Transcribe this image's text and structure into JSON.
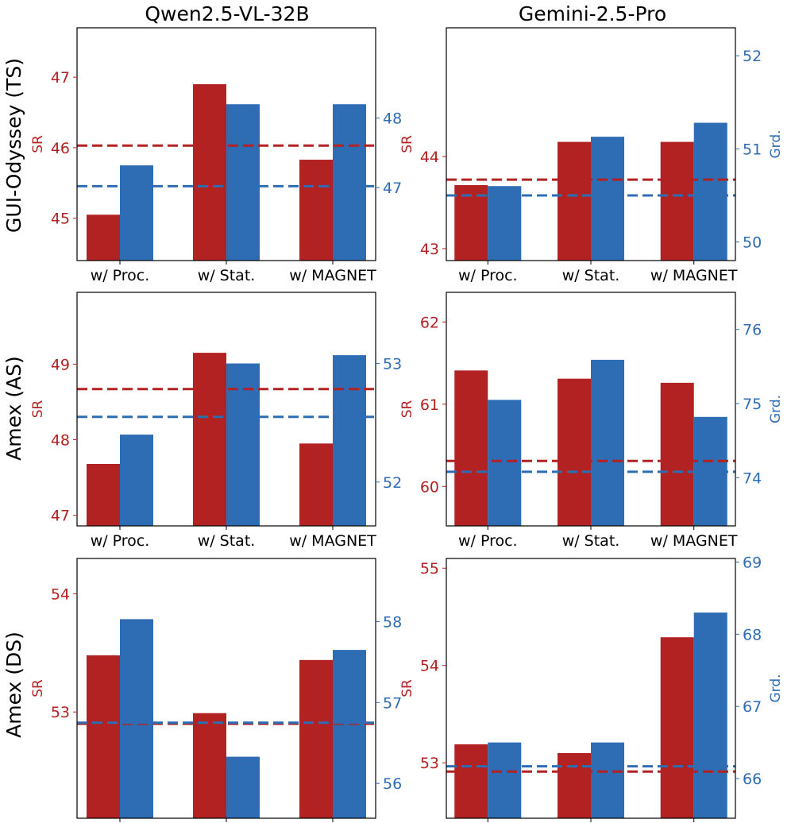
{
  "colors": {
    "sr": "#b22222",
    "grd": "#2e6db4"
  },
  "column_titles": [
    "Qwen2.5-VL-32B",
    "Gemini-2.5-Pro"
  ],
  "row_labels": [
    "GUI-Odyssey (TS)",
    "Amex (AS)",
    "Amex (DS)"
  ],
  "chart_data": [
    {
      "type": "bar",
      "model": "Qwen2.5-VL-32B",
      "dataset": "GUI-Odyssey (TS)",
      "categories": [
        "w/ Proc.",
        "w/ Stat.",
        "w/ MAGNET"
      ],
      "series": [
        {
          "name": "SR",
          "axis": "left",
          "values": [
            45.05,
            46.9,
            45.83
          ],
          "baseline": 46.03
        },
        {
          "name": "Grd.",
          "axis": "right",
          "values": [
            47.32,
            48.2,
            48.2
          ],
          "baseline": 47.02
        }
      ],
      "ylabel": "SR",
      "y2label": "",
      "ylim": [
        44.4,
        47.7
      ],
      "yticks": [
        45,
        46,
        47
      ],
      "y2lim": [
        45.95,
        49.3
      ],
      "y2ticks": [
        47,
        48
      ]
    },
    {
      "type": "bar",
      "model": "Gemini-2.5-Pro",
      "dataset": "GUI-Odyssey (TS)",
      "categories": [
        "w/ Proc.",
        "w/ Stat.",
        "w/ MAGNET"
      ],
      "series": [
        {
          "name": "SR",
          "axis": "left",
          "values": [
            43.69,
            44.16,
            44.16
          ],
          "baseline": 43.75
        },
        {
          "name": "Grd.",
          "axis": "right",
          "values": [
            50.6,
            51.13,
            51.28
          ],
          "baseline": 50.5
        }
      ],
      "ylabel": "SR",
      "y2label": "Grd.",
      "ylim": [
        42.87,
        45.4
      ],
      "yticks": [
        43,
        44
      ],
      "y2lim": [
        49.8,
        52.3
      ],
      "y2ticks": [
        50,
        51,
        52
      ]
    },
    {
      "type": "bar",
      "model": "Qwen2.5-VL-32B",
      "dataset": "Amex (AS)",
      "categories": [
        "w/ Proc.",
        "w/ Stat.",
        "w/ MAGNET"
      ],
      "series": [
        {
          "name": "SR",
          "axis": "left",
          "values": [
            47.68,
            49.15,
            47.95
          ],
          "baseline": 48.67
        },
        {
          "name": "Grd.",
          "axis": "right",
          "values": [
            52.4,
            53.0,
            53.07
          ],
          "baseline": 52.55
        }
      ],
      "ylabel": "SR",
      "y2label": "",
      "ylim": [
        46.86,
        49.95
      ],
      "yticks": [
        47,
        48,
        49
      ],
      "y2lim": [
        51.63,
        53.6
      ],
      "y2ticks": [
        52,
        53
      ]
    },
    {
      "type": "bar",
      "model": "Gemini-2.5-Pro",
      "dataset": "Amex (AS)",
      "categories": [
        "w/ Proc.",
        "w/ Stat.",
        "w/ MAGNET"
      ],
      "series": [
        {
          "name": "SR",
          "axis": "left",
          "values": [
            61.41,
            61.31,
            61.26
          ],
          "baseline": 60.31
        },
        {
          "name": "Grd.",
          "axis": "right",
          "values": [
            75.05,
            75.59,
            74.82
          ],
          "baseline": 74.08
        }
      ],
      "ylabel": "SR",
      "y2label": "Grd.",
      "ylim": [
        59.52,
        62.36
      ],
      "yticks": [
        60,
        61,
        62
      ],
      "y2lim": [
        73.35,
        76.5
      ],
      "y2ticks": [
        74,
        75,
        76
      ]
    },
    {
      "type": "bar",
      "model": "Qwen2.5-VL-32B",
      "dataset": "Amex (DS)",
      "categories": [
        "w/ Proc.",
        "w/ Stat.",
        "w/ MAGNET"
      ],
      "series": [
        {
          "name": "SR",
          "axis": "left",
          "values": [
            53.48,
            52.99,
            53.44
          ],
          "baseline": 52.9
        },
        {
          "name": "Grd.",
          "axis": "right",
          "values": [
            58.03,
            56.33,
            57.65
          ],
          "baseline": 56.75
        }
      ],
      "ylabel": "SR",
      "y2label": "",
      "ylim": [
        52.1,
        54.3
      ],
      "yticks": [
        53,
        54
      ],
      "y2lim": [
        55.57,
        58.78
      ],
      "y2ticks": [
        56,
        57,
        58
      ]
    },
    {
      "type": "bar",
      "model": "Gemini-2.5-Pro",
      "dataset": "Amex (DS)",
      "categories": [
        "w/ Proc.",
        "w/ Stat.",
        "w/ MAGNET"
      ],
      "series": [
        {
          "name": "SR",
          "axis": "left",
          "values": [
            53.19,
            53.1,
            54.29
          ],
          "baseline": 52.91
        },
        {
          "name": "Grd.",
          "axis": "right",
          "values": [
            66.5,
            66.5,
            68.3
          ],
          "baseline": 66.17
        }
      ],
      "ylabel": "SR",
      "y2label": "Grd.",
      "ylim": [
        52.43,
        55.1
      ],
      "yticks": [
        53,
        54,
        55
      ],
      "y2lim": [
        65.45,
        69.05
      ],
      "y2ticks": [
        66,
        67,
        68,
        69
      ]
    }
  ]
}
